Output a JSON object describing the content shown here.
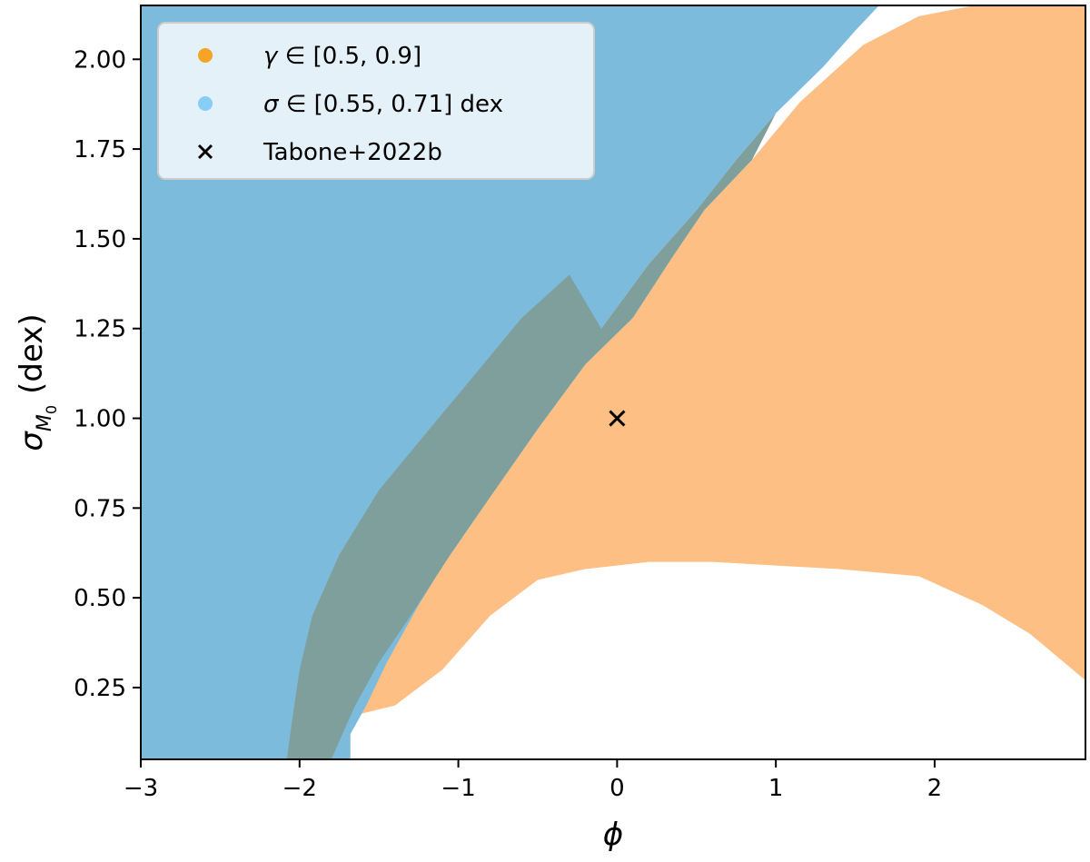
{
  "chart_data": {
    "type": "area",
    "xlabel": "ϕ",
    "ylabel_symbol": "σ",
    "ylabel_subscript": "M",
    "ylabel_subsubscript": "0",
    "ylabel_unit": "(dex)",
    "xlim": [
      -3.0,
      2.95
    ],
    "ylim": [
      0.05,
      2.15
    ],
    "x_ticks": [
      -3,
      -2,
      -1,
      0,
      1,
      2
    ],
    "x_tick_labels": [
      "−3",
      "−2",
      "−1",
      "0",
      "1",
      "2"
    ],
    "y_ticks": [
      0.25,
      0.5,
      0.75,
      1.0,
      1.25,
      1.5,
      1.75,
      2.0
    ],
    "y_tick_labels": [
      "0.25",
      "0.50",
      "0.75",
      "1.00",
      "1.25",
      "1.50",
      "1.75",
      "2.00"
    ],
    "grid": false,
    "legend_position": "top-left",
    "colors": {
      "gamma_region": "#fdbf84",
      "sigma_region": "#7dbbdc",
      "overlap_region": "#7f9f9d",
      "legend_gamma_marker": "#f5a425",
      "legend_sigma_marker": "#87cdf5",
      "point_marker": "#000000"
    },
    "legend": [
      {
        "marker": "dot",
        "color": "#f5a425",
        "math": "γ",
        "text": " ∈ [0.5, 0.9]"
      },
      {
        "marker": "dot",
        "color": "#87cdf5",
        "math": "σ",
        "text": " ∈ [0.55, 0.71] dex"
      },
      {
        "marker": "cross",
        "color": "#000000",
        "math": "",
        "text": "Tabone+2022b"
      }
    ],
    "series": [
      {
        "name": "γ ∈ [0.5, 0.9]",
        "kind": "region",
        "color": "#fdbf84",
        "polygon": [
          [
            -1.68,
            0.05
          ],
          [
            -1.68,
            0.17
          ],
          [
            -1.4,
            0.2
          ],
          [
            -1.1,
            0.3
          ],
          [
            -0.8,
            0.45
          ],
          [
            -0.5,
            0.55
          ],
          [
            -0.2,
            0.58
          ],
          [
            0.2,
            0.6
          ],
          [
            0.6,
            0.6
          ],
          [
            1.0,
            0.59
          ],
          [
            1.4,
            0.58
          ],
          [
            1.9,
            0.56
          ],
          [
            2.3,
            0.48
          ],
          [
            2.6,
            0.4
          ],
          [
            2.95,
            0.27
          ],
          [
            2.95,
            2.15
          ],
          [
            2.25,
            2.15
          ],
          [
            1.9,
            2.12
          ],
          [
            1.55,
            2.04
          ],
          [
            1.15,
            1.88
          ],
          [
            0.85,
            1.72
          ],
          [
            0.55,
            1.58
          ],
          [
            0.35,
            1.45
          ],
          [
            0.1,
            1.28
          ],
          [
            -0.2,
            1.15
          ],
          [
            -0.5,
            0.97
          ],
          [
            -0.8,
            0.78
          ],
          [
            -1.05,
            0.62
          ],
          [
            -1.3,
            0.45
          ],
          [
            -1.5,
            0.32
          ],
          [
            -1.65,
            0.2
          ],
          [
            -1.8,
            0.05
          ]
        ]
      },
      {
        "name": "σ ∈ [0.55, 0.71] dex",
        "kind": "region",
        "color": "#7dbbdc",
        "polygon": [
          [
            -3.0,
            0.05
          ],
          [
            -1.68,
            0.05
          ],
          [
            -1.68,
            0.12
          ],
          [
            -1.58,
            0.2
          ],
          [
            -1.45,
            0.32
          ],
          [
            -1.25,
            0.48
          ],
          [
            -1.0,
            0.66
          ],
          [
            -0.7,
            0.86
          ],
          [
            -0.4,
            1.05
          ],
          [
            -0.1,
            1.25
          ],
          [
            0.2,
            1.43
          ],
          [
            0.5,
            1.58
          ],
          [
            0.75,
            1.72
          ],
          [
            1.0,
            1.85
          ],
          [
            1.3,
            1.98
          ],
          [
            1.5,
            2.08
          ],
          [
            1.65,
            2.15
          ],
          [
            -3.0,
            2.15
          ]
        ]
      },
      {
        "name": "overlap",
        "kind": "region",
        "color": "#7f9f9d",
        "polygon": [
          [
            -2.08,
            0.05
          ],
          [
            -1.8,
            0.05
          ],
          [
            -1.65,
            0.2
          ],
          [
            -1.5,
            0.32
          ],
          [
            -1.3,
            0.45
          ],
          [
            -1.05,
            0.62
          ],
          [
            -0.8,
            0.78
          ],
          [
            -0.5,
            0.97
          ],
          [
            -0.2,
            1.15
          ],
          [
            0.1,
            1.28
          ],
          [
            0.35,
            1.45
          ],
          [
            0.55,
            1.58
          ],
          [
            0.85,
            1.72
          ],
          [
            1.0,
            1.85
          ],
          [
            0.75,
            1.72
          ],
          [
            0.5,
            1.58
          ],
          [
            0.2,
            1.43
          ],
          [
            -0.1,
            1.25
          ],
          [
            -0.3,
            1.4
          ],
          [
            -0.6,
            1.28
          ],
          [
            -0.9,
            1.12
          ],
          [
            -1.2,
            0.96
          ],
          [
            -1.5,
            0.8
          ],
          [
            -1.75,
            0.62
          ],
          [
            -1.92,
            0.45
          ],
          [
            -2.0,
            0.3
          ],
          [
            -2.05,
            0.15
          ]
        ]
      },
      {
        "name": "Tabone+2022b",
        "kind": "point",
        "marker": "x",
        "color": "#000000",
        "x": [
          0.0
        ],
        "y": [
          1.0
        ]
      }
    ]
  }
}
